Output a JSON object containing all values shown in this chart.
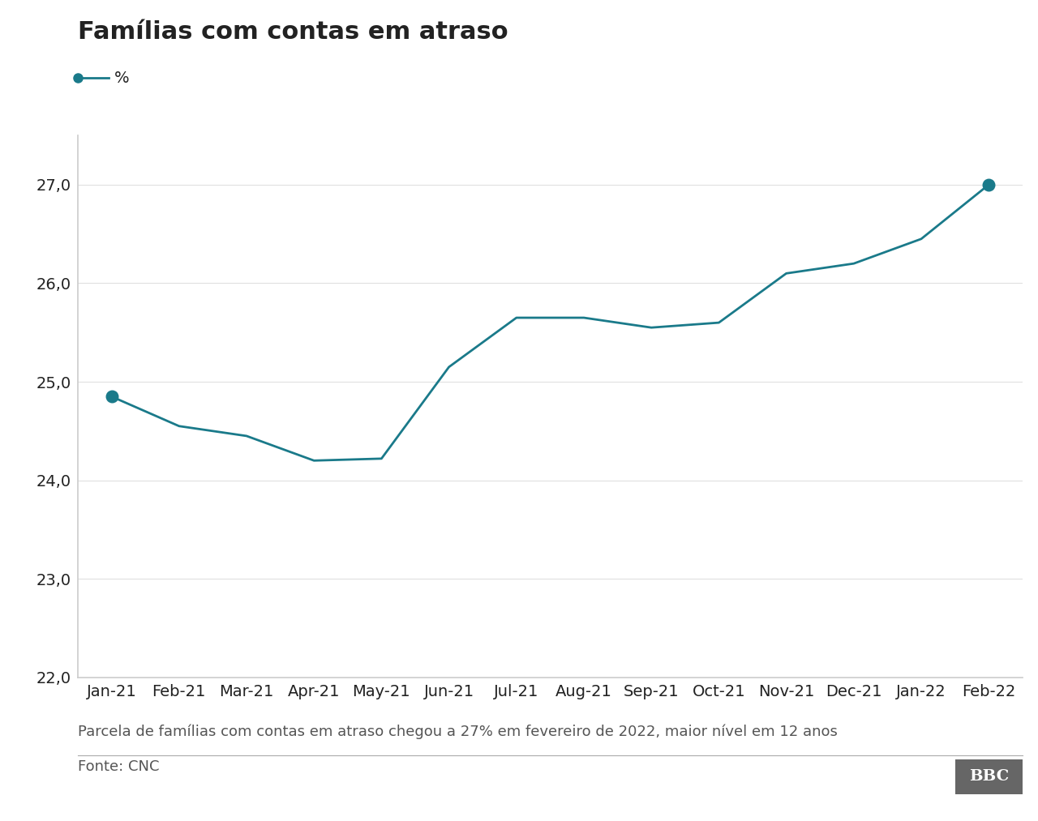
{
  "title": "Famílias com contas em atraso",
  "legend_label": "%",
  "x_labels": [
    "Jan-21",
    "Feb-21",
    "Mar-21",
    "Apr-21",
    "May-21",
    "Jun-21",
    "Jul-21",
    "Aug-21",
    "Sep-21",
    "Oct-21",
    "Nov-21",
    "Dec-21",
    "Jan-22",
    "Feb-22"
  ],
  "y_values": [
    24.85,
    24.55,
    24.45,
    24.2,
    24.22,
    25.15,
    25.65,
    25.65,
    25.55,
    25.6,
    26.1,
    26.2,
    26.45,
    27.0
  ],
  "line_color": "#1a7a8a",
  "marker_first": 0,
  "marker_last": 13,
  "ylim": [
    22.0,
    27.5
  ],
  "yticks": [
    22.0,
    23.0,
    24.0,
    25.0,
    26.0,
    27.0
  ],
  "caption": "Parcela de famílias com contas em atraso chegou a 27% em fevereiro de 2022, maior nível em 12 anos",
  "source": "Fonte: CNC",
  "background_color": "#ffffff",
  "text_color": "#222222",
  "grid_color": "#e0e0e0",
  "spine_color": "#cccccc",
  "title_fontsize": 22,
  "tick_fontsize": 14,
  "caption_fontsize": 13,
  "source_fontsize": 13,
  "bbc_bg": "#666666"
}
